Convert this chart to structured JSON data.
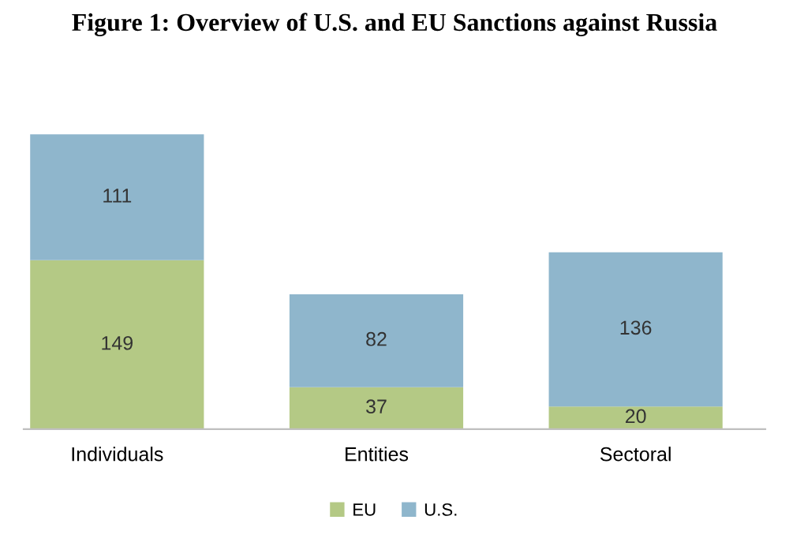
{
  "chart_data": {
    "type": "bar",
    "title": "Figure 1: Overview of U.S. and EU Sanctions against Russia",
    "categories": [
      "Individuals",
      "Entities",
      "Sectoral"
    ],
    "stacked": true,
    "data_labels": true,
    "legend": "bottom",
    "grid": false,
    "series": [
      {
        "name": "EU",
        "color": "#b4c985",
        "values": [
          149,
          37,
          20
        ]
      },
      {
        "name": "U.S.",
        "color": "#8fb6cc",
        "values": [
          111,
          82,
          136
        ]
      }
    ]
  }
}
